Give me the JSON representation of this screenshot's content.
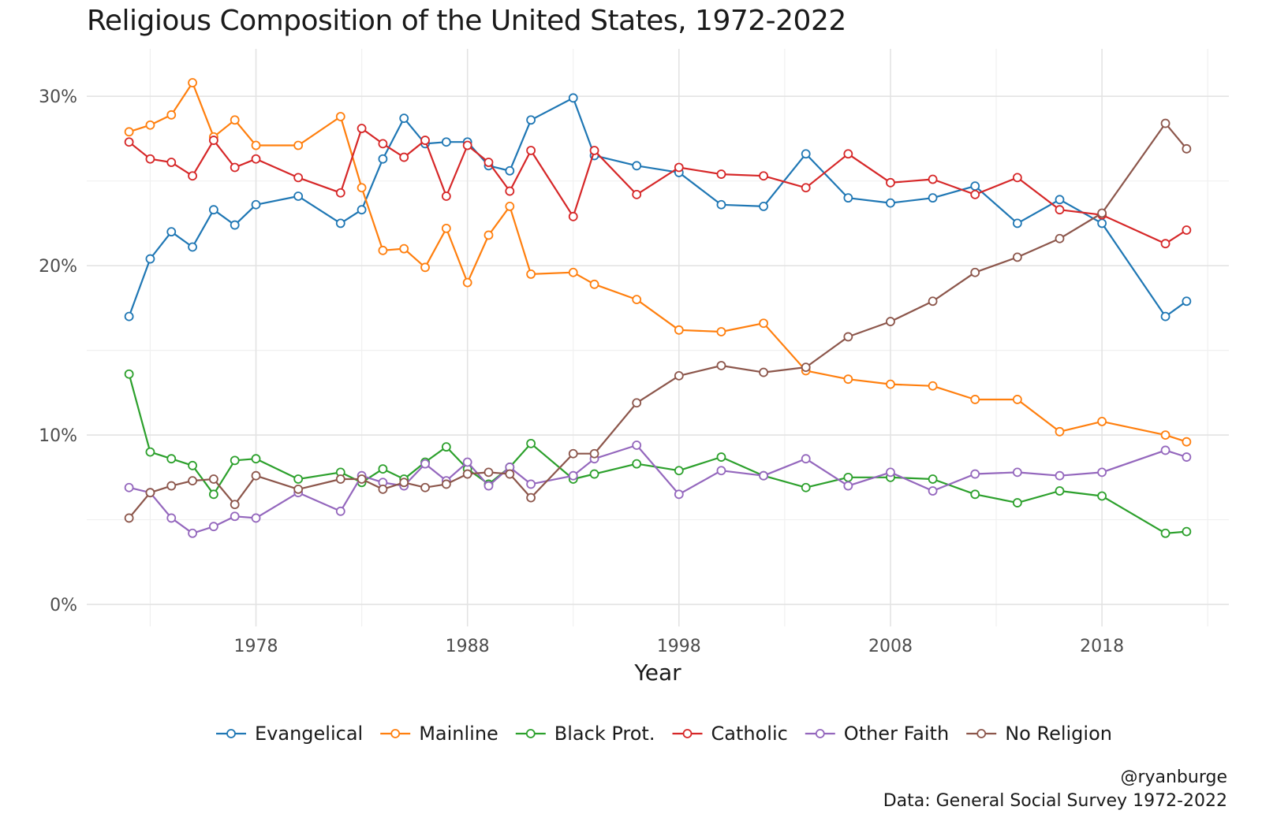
{
  "chart_data": {
    "type": "line",
    "title": "Religious Composition of the United States, 1972-2022",
    "xlabel": "Year",
    "ylabel": "",
    "xlim": [
      1970,
      2024
    ],
    "ylim": [
      -0.013,
      0.328
    ],
    "x_ticks": [
      1978,
      1988,
      1998,
      2008,
      2018
    ],
    "x_tick_labels": [
      "1978",
      "1988",
      "1998",
      "2008",
      "2018"
    ],
    "y_ticks": [
      0,
      0.1,
      0.2,
      0.3
    ],
    "y_tick_labels": [
      "0%",
      "10%",
      "20%",
      "30%"
    ],
    "grid": true,
    "legend_position": "bottom",
    "x": [
      1972,
      1973,
      1974,
      1975,
      1976,
      1977,
      1978,
      1980,
      1982,
      1983,
      1984,
      1985,
      1986,
      1987,
      1988,
      1989,
      1990,
      1991,
      1993,
      1994,
      1996,
      1998,
      2000,
      2002,
      2004,
      2006,
      2008,
      2010,
      2012,
      2014,
      2016,
      2018,
      2021,
      2022
    ],
    "series": [
      {
        "name": "Evangelical",
        "color": "#1f77b4",
        "values": [
          0.17,
          0.204,
          0.22,
          0.211,
          0.233,
          0.224,
          0.236,
          0.241,
          0.225,
          0.233,
          0.263,
          0.287,
          0.272,
          0.273,
          0.273,
          0.259,
          0.256,
          0.286,
          0.299,
          0.265,
          0.259,
          0.255,
          0.236,
          0.235,
          0.266,
          0.24,
          0.237,
          0.24,
          0.247,
          0.225,
          0.239,
          0.225,
          0.17,
          0.179
        ]
      },
      {
        "name": "Mainline",
        "color": "#ff7f0e",
        "values": [
          0.279,
          0.283,
          0.289,
          0.308,
          0.276,
          0.286,
          0.271,
          0.271,
          0.288,
          0.246,
          0.209,
          0.21,
          0.199,
          0.222,
          0.19,
          0.218,
          0.235,
          0.195,
          0.196,
          0.189,
          0.18,
          0.162,
          0.161,
          0.166,
          0.138,
          0.133,
          0.13,
          0.129,
          0.121,
          0.121,
          0.102,
          0.108,
          0.1,
          0.096
        ]
      },
      {
        "name": "Black Prot.",
        "color": "#2ca02c",
        "values": [
          0.136,
          0.09,
          0.086,
          0.082,
          0.065,
          0.085,
          0.086,
          0.074,
          0.078,
          0.072,
          0.08,
          0.074,
          0.084,
          0.093,
          0.08,
          0.071,
          0.081,
          0.095,
          0.074,
          0.077,
          0.083,
          0.079,
          0.087,
          0.076,
          0.069,
          0.075,
          0.075,
          0.074,
          0.065,
          0.06,
          0.067,
          0.064,
          0.042,
          0.043
        ]
      },
      {
        "name": "Catholic",
        "color": "#d62728",
        "values": [
          0.273,
          0.263,
          0.261,
          0.253,
          0.274,
          0.258,
          0.263,
          0.252,
          0.243,
          0.281,
          0.272,
          0.264,
          0.274,
          0.241,
          0.271,
          0.261,
          0.244,
          0.268,
          0.229,
          0.268,
          0.242,
          0.258,
          0.254,
          0.253,
          0.246,
          0.266,
          0.249,
          0.251,
          0.242,
          0.252,
          0.233,
          0.23,
          0.213,
          0.221
        ]
      },
      {
        "name": "Other Faith",
        "color": "#9467bd",
        "values": [
          0.069,
          0.066,
          0.051,
          0.042,
          0.046,
          0.052,
          0.051,
          0.066,
          0.055,
          0.076,
          0.072,
          0.07,
          0.083,
          0.073,
          0.084,
          0.07,
          0.081,
          0.071,
          0.076,
          0.086,
          0.094,
          0.065,
          0.079,
          0.076,
          0.086,
          0.07,
          0.078,
          0.067,
          0.077,
          0.078,
          0.076,
          0.078,
          0.091,
          0.087
        ]
      },
      {
        "name": "No Religion",
        "color": "#8c564b",
        "values": [
          0.051,
          0.066,
          0.07,
          0.073,
          0.074,
          0.059,
          0.076,
          0.068,
          0.074,
          0.074,
          0.068,
          0.072,
          0.069,
          0.071,
          0.077,
          0.078,
          0.077,
          0.063,
          0.089,
          0.089,
          0.119,
          0.135,
          0.141,
          0.137,
          0.14,
          0.158,
          0.167,
          0.179,
          0.196,
          0.205,
          0.216,
          0.231,
          0.284,
          0.269
        ]
      }
    ]
  },
  "caption": {
    "handle": "@ryanburge",
    "source": "Data: General Social Survey 1972-2022"
  }
}
